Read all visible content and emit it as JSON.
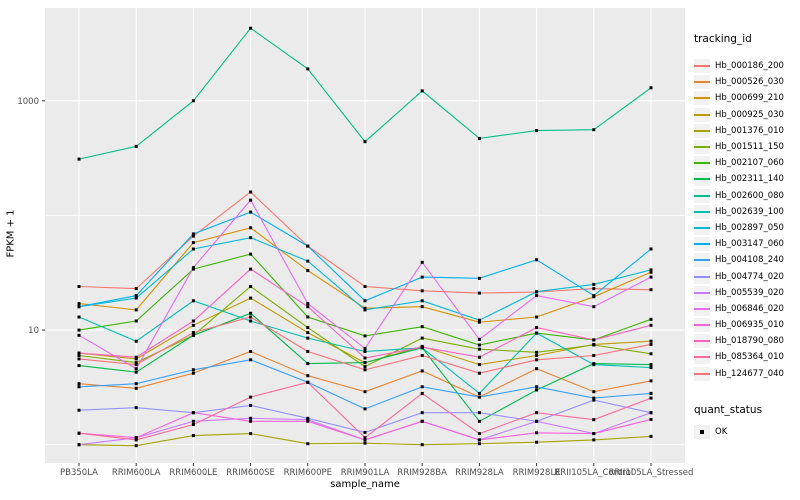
{
  "figure": {
    "background": "#ffffff",
    "panel_background": "#ebebeb",
    "grid_color": "#ffffff",
    "tick_label_color": "#4d4d4d",
    "tick_mark_color": "#333333",
    "point_color": "#000000"
  },
  "chart_data": {
    "type": "line",
    "title": "",
    "xlabel": "sample_name",
    "ylabel": "FPKM + 1",
    "x_categories": [
      "PB350LA",
      "RRIM600LA",
      "RRIM600LE",
      "RRIM600SE",
      "RRIM600PE",
      "RRIM901LA",
      "RRIM928BA",
      "RRIM928LA",
      "RRIM928LE",
      "RRII105LA_Control",
      "RRII105LA_Stressed"
    ],
    "y_scale": "log10",
    "y_major_ticks": [
      10,
      1000
    ],
    "y_tick_labels": [
      "10",
      "1000"
    ],
    "y_minor_gridlines": [
      1,
      100
    ],
    "y_range_log10": [
      -0.16,
      3.81
    ],
    "grid": "on",
    "legend_position": "right",
    "legend_title": "tracking_id",
    "quant_legend": {
      "title": "quant_status",
      "items": [
        {
          "label": "OK",
          "marker": "small-black-square"
        }
      ]
    },
    "series": [
      {
        "name": "Hb_000186_200",
        "color": "#F8766D",
        "values": [
          24,
          23,
          66,
          160,
          54,
          24,
          22,
          21,
          21.5,
          23,
          22.5
        ]
      },
      {
        "name": "Hb_000526_030",
        "color": "#EA8331",
        "values": [
          3.4,
          3.1,
          4.2,
          6.5,
          4.0,
          2.9,
          4.4,
          2.6,
          4.6,
          2.9,
          3.6
        ]
      },
      {
        "name": "Hb_000699_210",
        "color": "#D89000",
        "values": [
          17,
          15,
          58,
          78,
          33,
          15.5,
          16,
          11.7,
          13,
          19.5,
          32
        ]
      },
      {
        "name": "Hb_000925_030",
        "color": "#C09B00",
        "values": [
          6.3,
          5.6,
          11,
          19,
          9.5,
          5.2,
          7.2,
          5.0,
          6.0,
          7.5,
          8.0
        ]
      },
      {
        "name": "Hb_001376_010",
        "color": "#A3A500",
        "values": [
          1.0,
          0.98,
          1.2,
          1.25,
          1.02,
          1.03,
          1.0,
          1.02,
          1.05,
          1.1,
          1.18
        ]
      },
      {
        "name": "Hb_001511_150",
        "color": "#7CAE00",
        "values": [
          6.0,
          5.2,
          9.0,
          24,
          10.5,
          4.8,
          8.5,
          6.8,
          6.4,
          7.4,
          6.2
        ]
      },
      {
        "name": "Hb_002107_060",
        "color": "#39B600",
        "values": [
          10,
          12,
          34,
          46,
          13,
          8.9,
          10.7,
          7.4,
          9.4,
          8.2,
          12.4
        ]
      },
      {
        "name": "Hb_002311_140",
        "color": "#00BB4E",
        "values": [
          4.9,
          4.3,
          9.0,
          14,
          5.1,
          5.2,
          7.0,
          1.6,
          3.0,
          5.1,
          5.0
        ]
      },
      {
        "name": "Hb_002600_080",
        "color": "#00C087",
        "values": [
          310,
          400,
          1000,
          4300,
          1900,
          440,
          1220,
          470,
          550,
          560,
          1300
        ]
      },
      {
        "name": "Hb_002639_100",
        "color": "#00C0B2",
        "values": [
          13,
          8.0,
          18,
          12,
          8.5,
          6.5,
          7.0,
          2.8,
          9.4,
          5.0,
          4.7
        ]
      },
      {
        "name": "Hb_002897_050",
        "color": "#00BCD8",
        "values": [
          16,
          19,
          51,
          64,
          40,
          15,
          18,
          12.2,
          21.6,
          25,
          33.5
        ]
      },
      {
        "name": "Hb_003147_060",
        "color": "#00B0F6",
        "values": [
          16,
          20,
          69,
          107,
          54,
          18,
          29,
          28.3,
          41,
          20,
          51
        ]
      },
      {
        "name": "Hb_004108_240",
        "color": "#35A2FF",
        "values": [
          3.2,
          3.4,
          4.5,
          5.5,
          3.5,
          2.05,
          3.2,
          2.6,
          3.2,
          2.55,
          2.8
        ]
      },
      {
        "name": "Hb_004774_020",
        "color": "#9590FF",
        "values": [
          2.0,
          2.1,
          1.9,
          2.2,
          1.7,
          1.28,
          1.9,
          1.9,
          1.6,
          2.45,
          1.9
        ]
      },
      {
        "name": "Hb_005539_020",
        "color": "#C77CFF",
        "values": [
          1.0,
          1.15,
          1.6,
          1.7,
          1.65,
          1.1,
          1.6,
          1.1,
          1.6,
          1.25,
          1.9
        ]
      },
      {
        "name": "Hb_006846_020",
        "color": "#E76BF3",
        "values": [
          9.0,
          4.6,
          35,
          136,
          17,
          6.9,
          39,
          8.3,
          20,
          16,
          29
        ]
      },
      {
        "name": "Hb_006935_010",
        "color": "#FA62DB",
        "values": [
          1.26,
          1.15,
          1.9,
          1.6,
          1.6,
          1.1,
          1.6,
          1.1,
          1.27,
          1.25,
          1.66
        ]
      },
      {
        "name": "Hb_018790_080",
        "color": "#FF61C2",
        "values": [
          6.3,
          5.8,
          12,
          34,
          16,
          5.7,
          7.1,
          5.8,
          10.5,
          8.2,
          11
        ]
      },
      {
        "name": "Hb_085364_010",
        "color": "#FF689E",
        "values": [
          1.26,
          1.1,
          1.5,
          2.6,
          3.5,
          1.15,
          2.8,
          1.25,
          1.9,
          1.65,
          2.55
        ]
      },
      {
        "name": "Hb_124677_040",
        "color": "#FC7178",
        "values": [
          5.6,
          5.0,
          9.5,
          13,
          6.5,
          4.5,
          6.0,
          4.2,
          5.5,
          6.0,
          7.5
        ]
      }
    ]
  }
}
